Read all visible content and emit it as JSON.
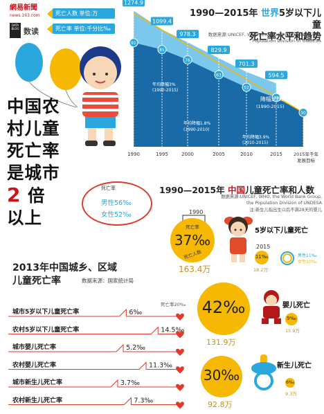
{
  "header": {
    "logo": "網易新聞",
    "logo_sub": "news.163.com",
    "databox": "DATA BLOG",
    "column": "数读"
  },
  "legend": {
    "deaths": "死亡人数  单位:万",
    "rate": "死亡率  单位:千分比‰"
  },
  "world": {
    "title_a": "1990—2015年 ",
    "title_hl": "世界",
    "title_b": "5岁以下儿童",
    "title_c": "死亡率水平和趋势",
    "source": "数据来源:UNICEF, WHO, the World Bank Group, the Population Division of UNDESA"
  },
  "big_title": {
    "l1": "中国农",
    "l2": "村儿童",
    "l3": "死亡率",
    "l4": "是城市",
    "l5_num": "2",
    "l5_txt": " 倍",
    "l6": "以上"
  },
  "china": {
    "title_a": "1990—2015年 ",
    "title_hl": "中国",
    "title_b": "儿童死亡率和人数",
    "source": "数据来源:UNICEF, WHO, the World Bank Group, the Population Division of UNDESA",
    "note": "注:新生儿指出生以后不满28天的婴儿",
    "year_1990": "1990",
    "year_2015": "2015",
    "rate_label": "死亡率",
    "deaths_label": "死亡人数",
    "under5": {
      "label": "5岁以下儿童死亡",
      "pct": "37‰",
      "deaths": "163.4万",
      "pct_2015": "11‰",
      "deaths_2015": "18.2万"
    },
    "infant": {
      "label": "婴儿死亡",
      "pct": "42‰",
      "deaths": "131.9万",
      "pct_2015": "9‰",
      "deaths_2015": "15.9万"
    },
    "neonatal": {
      "label": "新生儿死亡",
      "pct": "30‰",
      "deaths": "92.8万",
      "pct_2015": "6‰",
      "deaths_2015": "9.3万"
    },
    "gender_legend": {
      "male": "男性11‰",
      "female": "女性10‰"
    }
  },
  "gender": {
    "title": "死亡率",
    "male": "男性56‰",
    "female": "女性52‰"
  },
  "urban_rural": {
    "title_l1": "2013年中国城乡、区域",
    "title_l2": "儿童死亡率",
    "source": "数据来源：国家统计局",
    "axis_max": "死亡率20‰"
  },
  "chart_data": [
    {
      "type": "area",
      "title": "1990—2015年 世界5岁以下儿童死亡率水平和趋势",
      "x": [
        "1990",
        "1995",
        "2000",
        "2005",
        "2010",
        "2015",
        "2015年千年发展目标"
      ],
      "series": [
        {
          "name": "死亡人数  单位:万",
          "values": [
            1274.9,
            1099.4,
            978.3,
            829.9,
            701.3,
            594.5,
            null
          ]
        },
        {
          "name": "死亡率  单位:千分比‰",
          "values": [
            91,
            85,
            76,
            63,
            52,
            43,
            30
          ]
        }
      ],
      "annotations": [
        "年均降幅3%(1990-2015)",
        "年均降幅1.8%(1990-2010)",
        "年均降幅3.9%(2010-2015)",
        "降幅53%(1990-2015)"
      ]
    },
    {
      "type": "line",
      "title": "2013年中国城乡、区域儿童死亡率",
      "unit": "‰",
      "ylim": [
        0,
        20
      ],
      "categories": [
        "城市5岁以下儿童死亡率",
        "农村5岁以下儿童死亡率",
        "城市婴儿死亡率",
        "农村婴儿死亡率",
        "城市新生儿死亡率",
        "农村新生儿死亡率"
      ],
      "values": [
        6,
        14.5,
        5.2,
        11.3,
        3.7,
        7.3
      ],
      "value_labels": [
        "6‰",
        "14.5‰",
        "5.2‰",
        "11.3‰",
        "3.7‰",
        "7.3‰"
      ]
    }
  ],
  "colors": {
    "blue": "#2aa7dd",
    "dark_blue": "#1a6aa8",
    "yellow": "#f6b800",
    "red": "#e03a2a"
  }
}
